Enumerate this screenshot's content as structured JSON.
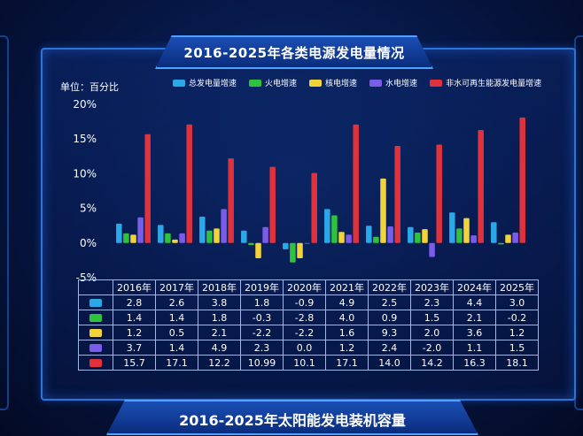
{
  "title": "2016-2025年各类电源发电量情况",
  "bottom_title": "2016-2025年太阳能发电装机容量",
  "unit": "单位：百分比",
  "chart_data": {
    "type": "bar",
    "title": "2016-2025年各类电源发电量情况",
    "categories": [
      "2016年",
      "2017年",
      "2018年",
      "2019年",
      "2020年",
      "2021年",
      "2022年",
      "2023年",
      "2024年",
      "2025年"
    ],
    "yticks": [
      "20%",
      "15%",
      "10%",
      "5%",
      "0%",
      "-5%"
    ],
    "ylim": [
      -5,
      20
    ],
    "grid": false,
    "legend_position": "top",
    "series": [
      {
        "name": "总发电量增速",
        "color": "#2aa8e8",
        "values": [
          2.8,
          2.6,
          3.8,
          1.8,
          -0.9,
          4.9,
          2.5,
          2.3,
          4.4,
          3.0
        ],
        "labels": [
          "2.8",
          "2.6",
          "3.8",
          "1.8",
          "-0.9",
          "4.9",
          "2.5",
          "2.3",
          "4.4",
          "3.0"
        ]
      },
      {
        "name": "火电增速",
        "color": "#2fc23c",
        "values": [
          1.4,
          1.4,
          1.8,
          -0.3,
          -2.8,
          4.0,
          0.9,
          1.5,
          2.1,
          -0.2
        ],
        "labels": [
          "1.4",
          "1.4",
          "1.8",
          "-0.3",
          "-2.8",
          "4.0",
          "0.9",
          "1.5",
          "2.1",
          "-0.2"
        ]
      },
      {
        "name": "核电增速",
        "color": "#f2d43a",
        "values": [
          1.2,
          0.5,
          2.1,
          -2.2,
          -2.2,
          1.6,
          9.3,
          2.0,
          3.6,
          1.2
        ],
        "labels": [
          "1.2",
          "0.5",
          "2.1",
          "-2.2",
          "-2.2",
          "1.6",
          "9.3",
          "2.0",
          "3.6",
          "1.2"
        ]
      },
      {
        "name": "水电增速",
        "color": "#7b5ce8",
        "values": [
          3.7,
          1.4,
          4.9,
          2.3,
          0.0,
          1.2,
          2.4,
          -2.0,
          1.1,
          1.5
        ],
        "labels": [
          "3.7",
          "1.4",
          "4.9",
          "2.3",
          "0.0",
          "1.2",
          "2.4",
          "-2.0",
          "1.1",
          "1.5"
        ]
      },
      {
        "name": "非水可再生能源发电量增速",
        "color": "#e0323c",
        "values": [
          15.7,
          17.1,
          12.2,
          10.99,
          10.1,
          17.1,
          14.0,
          14.2,
          16.3,
          18.1
        ],
        "labels": [
          "15.7",
          "17.1",
          "12.2",
          "10.99",
          "10.1",
          "17.1",
          "14.0",
          "14.2",
          "16.3",
          "18.1"
        ]
      }
    ]
  }
}
